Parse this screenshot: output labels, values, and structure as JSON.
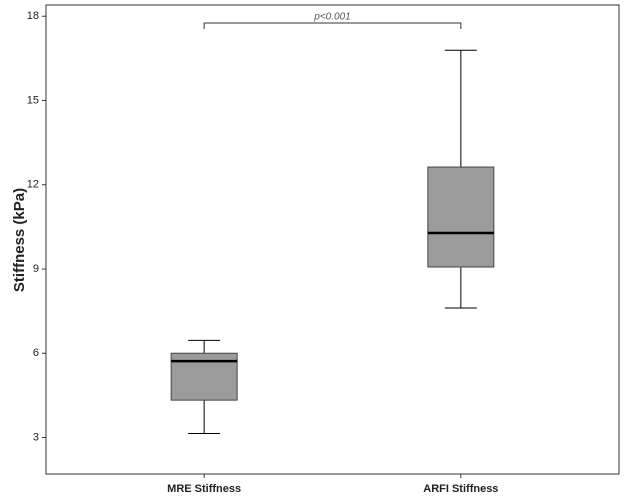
{
  "chart_data": {
    "type": "box",
    "y_label": "Stiffness (kPa)",
    "categories": [
      "MRE Stiffness",
      "ARFI Stiffness"
    ],
    "min": [
      3.14,
      7.61
    ],
    "q1": [
      4.33,
      9.07
    ],
    "median": [
      5.72,
      10.28
    ],
    "q3": [
      6.0,
      12.63
    ],
    "max": [
      6.46,
      16.79
    ],
    "color": "#9b9b9b",
    "median_color": "#000000",
    "ylim": [
      1.7,
      18.4
    ],
    "yticks": [
      3,
      6,
      9,
      12,
      15,
      18
    ],
    "annotation": "p<0.001"
  }
}
